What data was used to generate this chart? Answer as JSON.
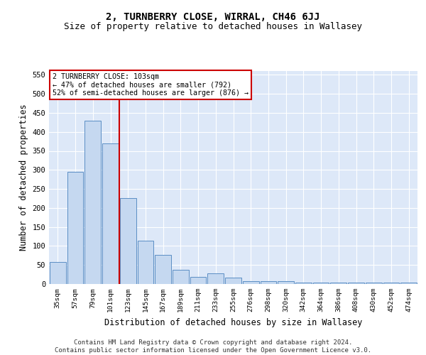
{
  "title": "2, TURNBERRY CLOSE, WIRRAL, CH46 6JJ",
  "subtitle": "Size of property relative to detached houses in Wallasey",
  "xlabel": "Distribution of detached houses by size in Wallasey",
  "ylabel": "Number of detached properties",
  "categories": [
    "35sqm",
    "57sqm",
    "79sqm",
    "101sqm",
    "123sqm",
    "145sqm",
    "167sqm",
    "189sqm",
    "211sqm",
    "233sqm",
    "255sqm",
    "276sqm",
    "298sqm",
    "320sqm",
    "342sqm",
    "364sqm",
    "386sqm",
    "408sqm",
    "430sqm",
    "452sqm",
    "474sqm"
  ],
  "values": [
    57,
    295,
    430,
    370,
    225,
    113,
    76,
    38,
    18,
    28,
    16,
    8,
    8,
    8,
    4,
    4,
    4,
    4,
    4,
    3,
    3
  ],
  "bar_color": "#c5d8f0",
  "bar_edge_color": "#5b8ec4",
  "background_color": "#ffffff",
  "plot_bg_color": "#dde8f8",
  "grid_color": "#ffffff",
  "vline_index": 3,
  "vline_color": "#cc0000",
  "annotation_text": "2 TURNBERRY CLOSE: 103sqm\n← 47% of detached houses are smaller (792)\n52% of semi-detached houses are larger (876) →",
  "annotation_box_color": "#ffffff",
  "annotation_box_edge": "#cc0000",
  "ylim": [
    0,
    560
  ],
  "yticks": [
    0,
    50,
    100,
    150,
    200,
    250,
    300,
    350,
    400,
    450,
    500,
    550
  ],
  "footer": "Contains HM Land Registry data © Crown copyright and database right 2024.\nContains public sector information licensed under the Open Government Licence v3.0.",
  "title_fontsize": 10,
  "subtitle_fontsize": 9,
  "xlabel_fontsize": 8.5,
  "ylabel_fontsize": 8.5,
  "footer_fontsize": 6.5
}
